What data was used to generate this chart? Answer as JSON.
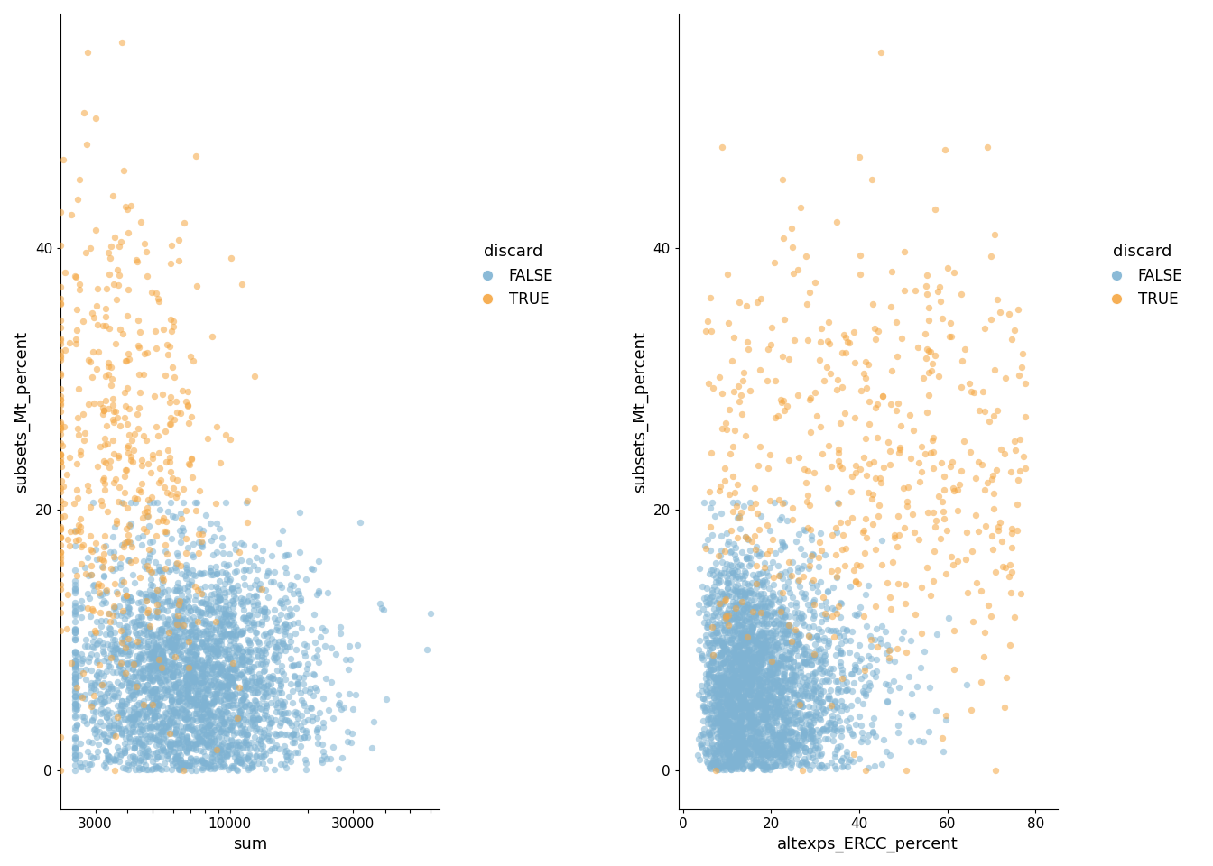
{
  "false_color": "#7fb3d3",
  "true_color": "#f5a742",
  "point_alpha": 0.55,
  "point_size": 28,
  "ylabel": "subsets_Mt_percent",
  "xlabel_left": "sum",
  "xlabel_right": "altexps_ERCC_percent",
  "legend_title": "discard",
  "legend_false": "FALSE",
  "legend_true": "TRUE",
  "background_color": "#ffffff",
  "ylim_left": [
    -3,
    58
  ],
  "ylim_right": [
    -3,
    58
  ],
  "xlim_left": [
    2200,
    65000
  ],
  "xlim_right": [
    -1,
    85
  ],
  "yticks_left": [
    0,
    20,
    40
  ],
  "yticks_right": [
    0,
    20,
    40
  ],
  "xticks_left": [
    3000,
    10000,
    30000
  ],
  "xticks_right": [
    0,
    20,
    40,
    60,
    80
  ],
  "seed": 42,
  "n_false": 3000,
  "n_true": 500
}
